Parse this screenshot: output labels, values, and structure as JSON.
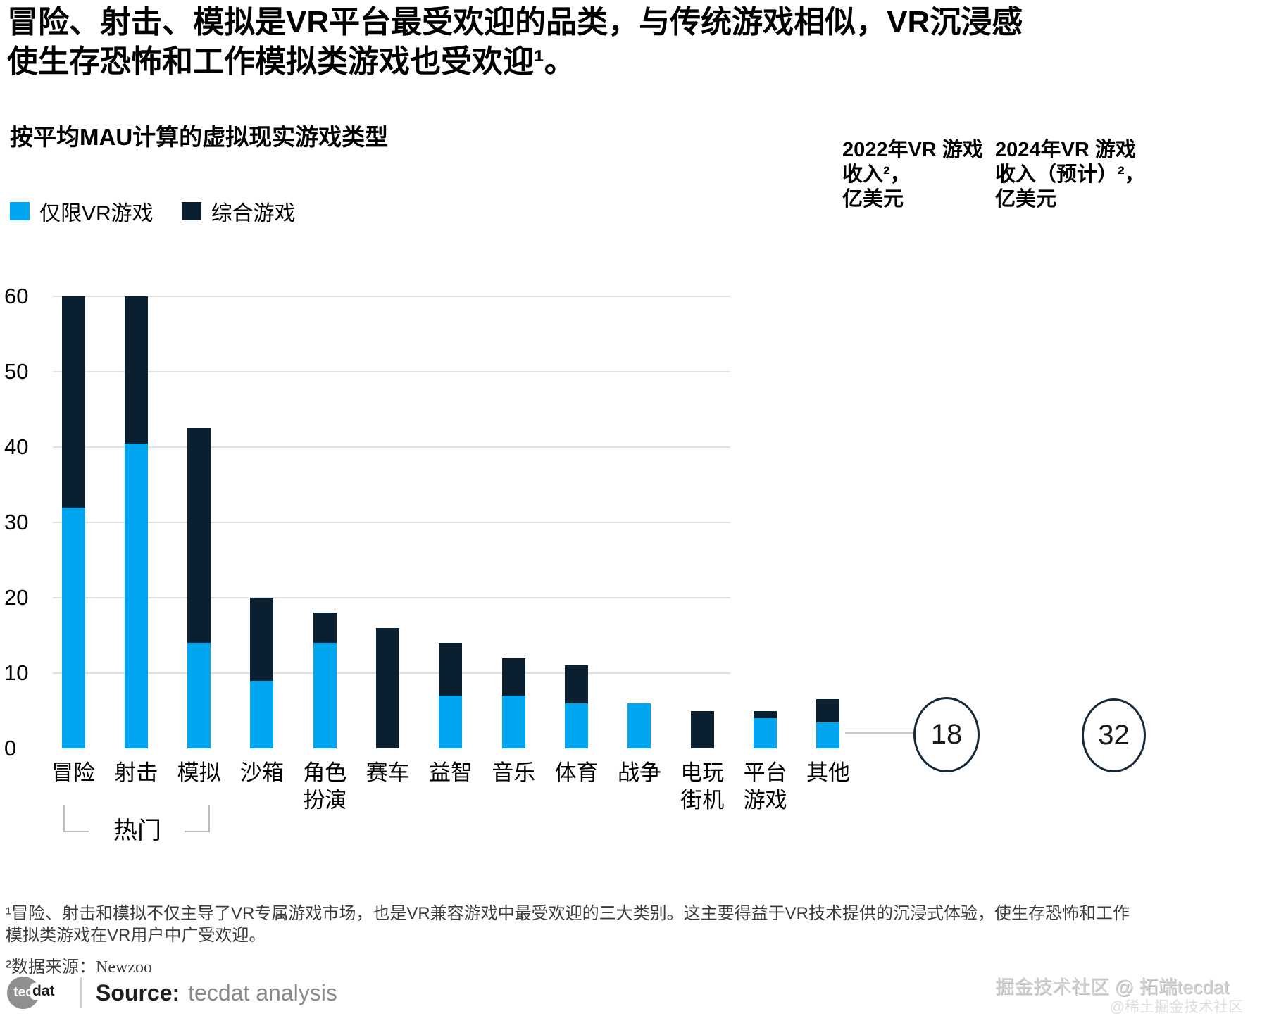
{
  "title_lines": [
    "冒险、射击、模拟是VR平台最受欢迎的品类，与传统游戏相似，VR沉浸感",
    "使生存恐怖和工作模拟类游戏也受欢迎¹。"
  ],
  "subtitle": "按平均MAU计算的虚拟现实游戏类型",
  "legend": {
    "vr_only": "仅限VR游戏",
    "hybrid": "综合游戏"
  },
  "columns": {
    "col2022": {
      "line1": "2022年VR 游戏",
      "line2": "收入²，",
      "line3": "亿美元"
    },
    "col2024": {
      "line1": "2024年VR 游戏",
      "line2": "收入（预计）²，",
      "line3": "亿美元"
    }
  },
  "revenue": {
    "y2022": "18",
    "y2024": "32"
  },
  "hot_group_label": "热门",
  "chart_data": {
    "type": "bar",
    "stacked": true,
    "title": "按平均MAU计算的虚拟现实游戏类型",
    "categories": [
      "冒险",
      "射击",
      "模拟",
      "沙箱",
      "角色扮演",
      "赛车",
      "益智",
      "音乐",
      "体育",
      "战争",
      "电玩街机",
      "平台游戏",
      "其他"
    ],
    "label_lines": [
      [
        "冒险"
      ],
      [
        "射击"
      ],
      [
        "模拟"
      ],
      [
        "沙箱"
      ],
      [
        "角色",
        "扮演"
      ],
      [
        "赛车"
      ],
      [
        "益智"
      ],
      [
        "音乐"
      ],
      [
        "体育"
      ],
      [
        "战争"
      ],
      [
        "电玩",
        "街机"
      ],
      [
        "平台",
        "游戏"
      ],
      [
        "其他"
      ]
    ],
    "series": [
      {
        "name": "仅限VR游戏",
        "color": "#00a7f0",
        "values": [
          32,
          40.5,
          14,
          9,
          14,
          0,
          7,
          7,
          6,
          6,
          0,
          4,
          3.5
        ]
      },
      {
        "name": "综合游戏",
        "color": "#0a2030",
        "values": [
          28,
          19.5,
          28.5,
          11,
          4,
          16,
          7,
          5,
          5,
          0,
          5,
          1,
          3
        ]
      }
    ],
    "totals": [
      60,
      60,
      42.5,
      20,
      18,
      16,
      14,
      12,
      11,
      6,
      5,
      5,
      6.5
    ],
    "ylim": [
      0,
      60
    ],
    "yticks": [
      0,
      10,
      20,
      30,
      40,
      50,
      60
    ],
    "grid": true,
    "legend_position": "top-left",
    "highlight_group": {
      "label": "热门",
      "categories": [
        "冒险",
        "射击",
        "模拟"
      ]
    },
    "annotations": [
      {
        "label": "2022年VR游戏收入，亿美元",
        "value": 18
      },
      {
        "label": "2024年VR游戏收入（预计），亿美元",
        "value": 32
      }
    ]
  },
  "footnotes": {
    "note1_lines": [
      "¹冒险、射击和模拟不仅主导了VR专属游戏市场，也是VR兼容游戏中最受欢迎的三大类别。这主要得益于VR技术提供的沉浸式体验，使生存恐怖和工作",
      "模拟类游戏在VR用户中广受欢迎。"
    ],
    "note2_prefix": "²数据来源：",
    "note2_source": "Newzoo"
  },
  "source": {
    "logo_tec": "tec",
    "logo_dat": "dat",
    "label": "Source:",
    "value": "tecdat analysis"
  },
  "watermarks": {
    "line1": "掘金技术社区 @ 拓端tecdat",
    "line2": "@稀土掘金技术社区"
  }
}
